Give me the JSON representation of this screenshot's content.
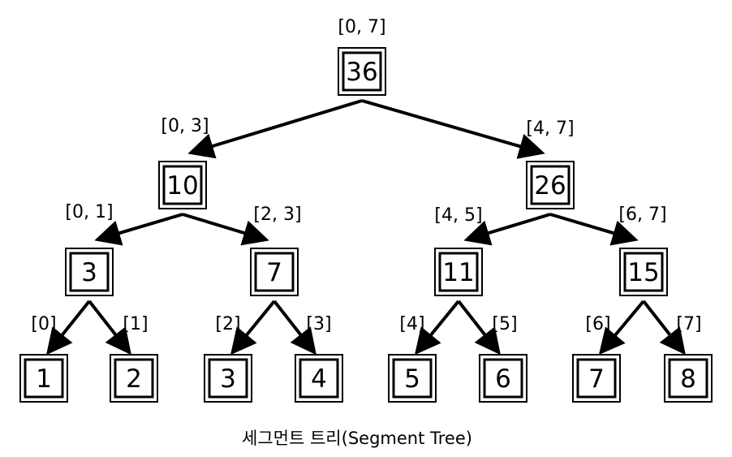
{
  "diagram": {
    "caption": "세그먼트 트리(Segment Tree)",
    "nodes": [
      {
        "id": "n0",
        "value": "36",
        "range": "[0, 7]"
      },
      {
        "id": "n1",
        "value": "10",
        "range": "[0, 3]"
      },
      {
        "id": "n2",
        "value": "26",
        "range": "[4, 7]"
      },
      {
        "id": "n3",
        "value": "3",
        "range": "[0, 1]"
      },
      {
        "id": "n4",
        "value": "7",
        "range": "[2, 3]"
      },
      {
        "id": "n5",
        "value": "11",
        "range": "[4, 5]"
      },
      {
        "id": "n6",
        "value": "15",
        "range": "[6, 7]"
      },
      {
        "id": "n7",
        "value": "1",
        "range": "[0]"
      },
      {
        "id": "n8",
        "value": "2",
        "range": "[1]"
      },
      {
        "id": "n9",
        "value": "3",
        "range": "[2]"
      },
      {
        "id": "n10",
        "value": "4",
        "range": "[3]"
      },
      {
        "id": "n11",
        "value": "5",
        "range": "[4]"
      },
      {
        "id": "n12",
        "value": "6",
        "range": "[5]"
      },
      {
        "id": "n13",
        "value": "7",
        "range": "[6]"
      },
      {
        "id": "n14",
        "value": "8",
        "range": "[7]"
      }
    ],
    "edges": [
      [
        "n0",
        "n1"
      ],
      [
        "n0",
        "n2"
      ],
      [
        "n1",
        "n3"
      ],
      [
        "n1",
        "n4"
      ],
      [
        "n2",
        "n5"
      ],
      [
        "n2",
        "n6"
      ],
      [
        "n3",
        "n7"
      ],
      [
        "n3",
        "n8"
      ],
      [
        "n4",
        "n9"
      ],
      [
        "n4",
        "n10"
      ],
      [
        "n5",
        "n11"
      ],
      [
        "n5",
        "n12"
      ],
      [
        "n6",
        "n13"
      ],
      [
        "n6",
        "n14"
      ]
    ]
  }
}
